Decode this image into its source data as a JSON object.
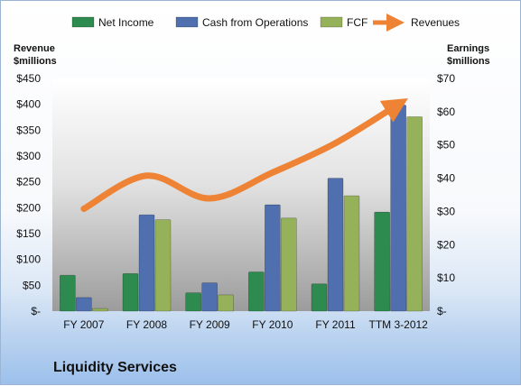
{
  "company": "Liquidity Services",
  "chart_data": {
    "type": "bar",
    "categories": [
      "FY 2007",
      "FY 2008",
      "FY 2009",
      "FY 2010",
      "FY 2011",
      "TTM 3-2012"
    ],
    "series": [
      {
        "name": "Net Income",
        "axis": "right",
        "color": "#2e8b4f",
        "values": [
          10.8,
          11.3,
          5.5,
          11.8,
          8.2,
          29.8
        ]
      },
      {
        "name": "Cash from Operations",
        "axis": "right",
        "color": "#4f6fae",
        "values": [
          4.1,
          29.0,
          8.5,
          32.0,
          40.0,
          62.0
        ]
      },
      {
        "name": "FCF",
        "axis": "right",
        "color": "#95b25a",
        "values": [
          0.8,
          27.5,
          4.9,
          28.0,
          34.7,
          58.5
        ]
      },
      {
        "name": "Revenues",
        "axis": "left",
        "type": "line",
        "color": "#ee8335",
        "values": [
          198,
          262,
          218,
          268,
          325,
          400
        ]
      }
    ],
    "left_axis": {
      "title": [
        "Revenue",
        "$millions"
      ],
      "min": 0,
      "max": 450,
      "step": 50,
      "tick_labels": [
        "$-",
        "$50",
        "$100",
        "$150",
        "$200",
        "$250",
        "$300",
        "$350",
        "$400",
        "$450"
      ]
    },
    "right_axis": {
      "title": [
        "Earnings",
        "$millions"
      ],
      "min": 0,
      "max": 70,
      "step": 10,
      "tick_labels": [
        "$-",
        "$10",
        "$20",
        "$30",
        "$40",
        "$50",
        "$60",
        "$70"
      ]
    },
    "legend_position": "top",
    "grid": false
  }
}
